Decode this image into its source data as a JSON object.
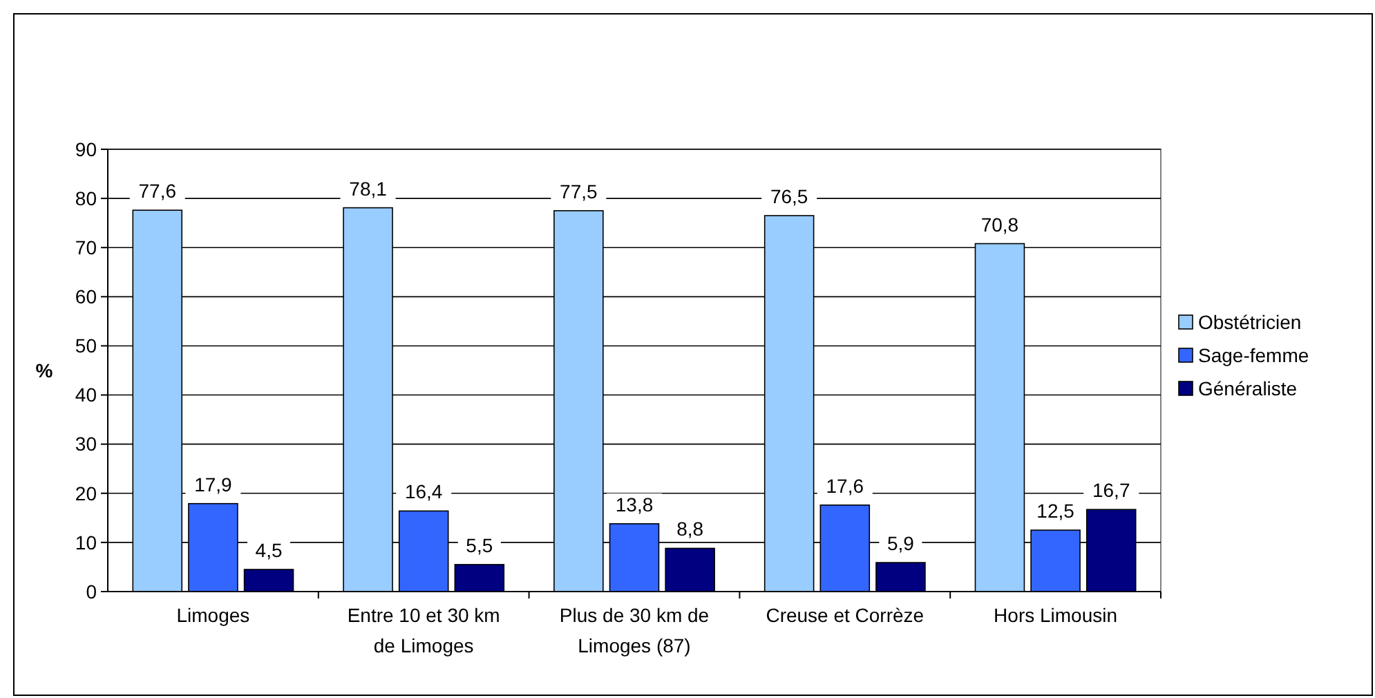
{
  "chart_data": {
    "type": "bar",
    "ylabel": "%",
    "categories": [
      "Limoges",
      "Entre 10 et 30 km de Limoges",
      "Plus de 30 km de Limoges (87)",
      "Creuse et Corrèze",
      "Hors Limousin"
    ],
    "series": [
      {
        "name": "Obstétricien",
        "color": "#99ccff",
        "values": [
          77.6,
          78.1,
          77.5,
          76.5,
          70.8
        ],
        "value_labels": [
          "77,6",
          "78,1",
          "77,5",
          "76,5",
          "70,8"
        ]
      },
      {
        "name": "Sage-femme",
        "color": "#3366ff",
        "values": [
          17.9,
          16.4,
          13.8,
          17.6,
          12.5
        ],
        "value_labels": [
          "17,9",
          "16,4",
          "13,8",
          "17,6",
          "12,5"
        ]
      },
      {
        "name": "Généraliste",
        "color": "#000080",
        "values": [
          4.5,
          5.5,
          8.8,
          5.9,
          16.7
        ],
        "value_labels": [
          "4,5",
          "5,5",
          "8,8",
          "5,9",
          "16,7"
        ]
      }
    ],
    "ylim": [
      0,
      90
    ],
    "yticks": [
      0,
      10,
      20,
      30,
      40,
      50,
      60,
      70,
      80,
      90
    ],
    "grid": "y",
    "legend": "right"
  }
}
